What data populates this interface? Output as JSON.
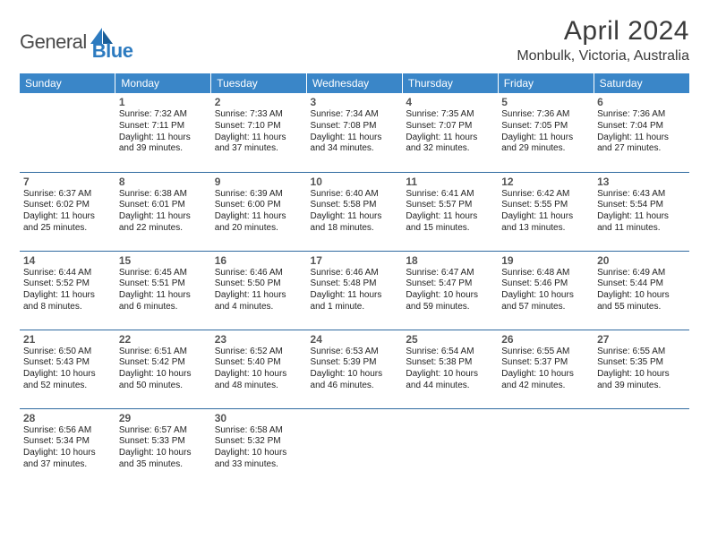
{
  "logo": {
    "a": "General",
    "b": "Blue"
  },
  "title": "April 2024",
  "location": "Monbulk, Victoria, Australia",
  "colors": {
    "header_bg": "#3a86c8",
    "header_text": "#ffffff",
    "rule": "#2f6aa0",
    "body_text": "#222222",
    "daynum_text": "#555555",
    "logo_gray": "#4a4a4a",
    "logo_blue": "#2d7bc0"
  },
  "dow": [
    "Sunday",
    "Monday",
    "Tuesday",
    "Wednesday",
    "Thursday",
    "Friday",
    "Saturday"
  ],
  "weeks": [
    [
      null,
      {
        "n": "1",
        "sr": "7:32 AM",
        "ss": "7:11 PM",
        "dl": "11 hours and 39 minutes."
      },
      {
        "n": "2",
        "sr": "7:33 AM",
        "ss": "7:10 PM",
        "dl": "11 hours and 37 minutes."
      },
      {
        "n": "3",
        "sr": "7:34 AM",
        "ss": "7:08 PM",
        "dl": "11 hours and 34 minutes."
      },
      {
        "n": "4",
        "sr": "7:35 AM",
        "ss": "7:07 PM",
        "dl": "11 hours and 32 minutes."
      },
      {
        "n": "5",
        "sr": "7:36 AM",
        "ss": "7:05 PM",
        "dl": "11 hours and 29 minutes."
      },
      {
        "n": "6",
        "sr": "7:36 AM",
        "ss": "7:04 PM",
        "dl": "11 hours and 27 minutes."
      }
    ],
    [
      {
        "n": "7",
        "sr": "6:37 AM",
        "ss": "6:02 PM",
        "dl": "11 hours and 25 minutes."
      },
      {
        "n": "8",
        "sr": "6:38 AM",
        "ss": "6:01 PM",
        "dl": "11 hours and 22 minutes."
      },
      {
        "n": "9",
        "sr": "6:39 AM",
        "ss": "6:00 PM",
        "dl": "11 hours and 20 minutes."
      },
      {
        "n": "10",
        "sr": "6:40 AM",
        "ss": "5:58 PM",
        "dl": "11 hours and 18 minutes."
      },
      {
        "n": "11",
        "sr": "6:41 AM",
        "ss": "5:57 PM",
        "dl": "11 hours and 15 minutes."
      },
      {
        "n": "12",
        "sr": "6:42 AM",
        "ss": "5:55 PM",
        "dl": "11 hours and 13 minutes."
      },
      {
        "n": "13",
        "sr": "6:43 AM",
        "ss": "5:54 PM",
        "dl": "11 hours and 11 minutes."
      }
    ],
    [
      {
        "n": "14",
        "sr": "6:44 AM",
        "ss": "5:52 PM",
        "dl": "11 hours and 8 minutes."
      },
      {
        "n": "15",
        "sr": "6:45 AM",
        "ss": "5:51 PM",
        "dl": "11 hours and 6 minutes."
      },
      {
        "n": "16",
        "sr": "6:46 AM",
        "ss": "5:50 PM",
        "dl": "11 hours and 4 minutes."
      },
      {
        "n": "17",
        "sr": "6:46 AM",
        "ss": "5:48 PM",
        "dl": "11 hours and 1 minute."
      },
      {
        "n": "18",
        "sr": "6:47 AM",
        "ss": "5:47 PM",
        "dl": "10 hours and 59 minutes."
      },
      {
        "n": "19",
        "sr": "6:48 AM",
        "ss": "5:46 PM",
        "dl": "10 hours and 57 minutes."
      },
      {
        "n": "20",
        "sr": "6:49 AM",
        "ss": "5:44 PM",
        "dl": "10 hours and 55 minutes."
      }
    ],
    [
      {
        "n": "21",
        "sr": "6:50 AM",
        "ss": "5:43 PM",
        "dl": "10 hours and 52 minutes."
      },
      {
        "n": "22",
        "sr": "6:51 AM",
        "ss": "5:42 PM",
        "dl": "10 hours and 50 minutes."
      },
      {
        "n": "23",
        "sr": "6:52 AM",
        "ss": "5:40 PM",
        "dl": "10 hours and 48 minutes."
      },
      {
        "n": "24",
        "sr": "6:53 AM",
        "ss": "5:39 PM",
        "dl": "10 hours and 46 minutes."
      },
      {
        "n": "25",
        "sr": "6:54 AM",
        "ss": "5:38 PM",
        "dl": "10 hours and 44 minutes."
      },
      {
        "n": "26",
        "sr": "6:55 AM",
        "ss": "5:37 PM",
        "dl": "10 hours and 42 minutes."
      },
      {
        "n": "27",
        "sr": "6:55 AM",
        "ss": "5:35 PM",
        "dl": "10 hours and 39 minutes."
      }
    ],
    [
      {
        "n": "28",
        "sr": "6:56 AM",
        "ss": "5:34 PM",
        "dl": "10 hours and 37 minutes."
      },
      {
        "n": "29",
        "sr": "6:57 AM",
        "ss": "5:33 PM",
        "dl": "10 hours and 35 minutes."
      },
      {
        "n": "30",
        "sr": "6:58 AM",
        "ss": "5:32 PM",
        "dl": "10 hours and 33 minutes."
      },
      null,
      null,
      null,
      null
    ]
  ],
  "labels": {
    "sunrise": "Sunrise:",
    "sunset": "Sunset:",
    "daylight": "Daylight:"
  }
}
